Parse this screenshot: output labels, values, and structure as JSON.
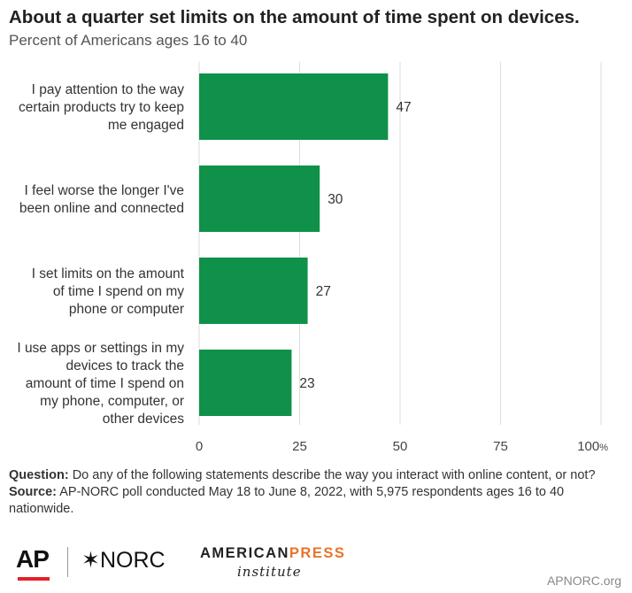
{
  "title": "About a quarter set limits on the amount of time spent on devices.",
  "subtitle": "Percent of Americans ages 16 to 40",
  "chart_data": {
    "type": "bar",
    "orientation": "horizontal",
    "categories": [
      [
        "I pay attention to the way",
        "certain products try to keep",
        "me engaged"
      ],
      [
        "I feel worse the longer I've",
        "been online and connected"
      ],
      [
        "I set limits on the amount",
        "of time I spend on my",
        "phone or computer"
      ],
      [
        "I use apps or settings in my",
        "devices to track the",
        "amount of time I spend on",
        "my phone, computer, or",
        "other devices"
      ]
    ],
    "values": [
      47,
      30,
      27,
      23
    ],
    "value_labels": [
      "47",
      "30",
      "27",
      "23"
    ],
    "xlim": [
      0,
      100
    ],
    "ticks": [
      0,
      25,
      50,
      75,
      100
    ],
    "tick_labels": [
      "0",
      "25",
      "50",
      "75",
      "100"
    ],
    "tick_unit": "%",
    "grid": true,
    "bar_color": "#0f9149",
    "grid_color": "#dddddd"
  },
  "notes": {
    "question_label": "Question:",
    "question_text": " Do any of the following statements describe the way you interact with online content, or not?",
    "source_label": "Source:",
    "source_text": " AP-NORC poll conducted May 18 to June 8, 2022, with 5,975 respondents ages 16 to 40 nationwide."
  },
  "logos": {
    "ap": "AP",
    "norc": "✶NORC",
    "api_part1": "AMERICAN",
    "api_part2": "PRESS",
    "api_sub": "institute"
  },
  "site": "APNORC.org"
}
